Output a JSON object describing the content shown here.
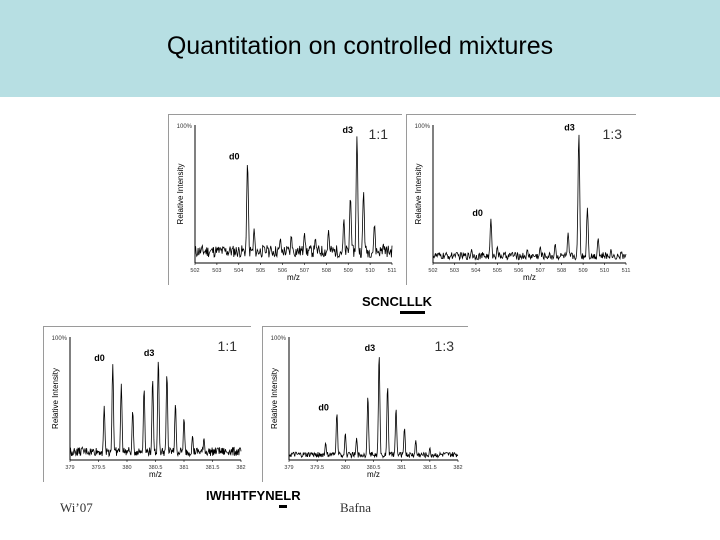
{
  "title": "Quantitation on controlled mixtures",
  "footer": {
    "left": "Wi’07",
    "right": "Bafna"
  },
  "sequences": {
    "seq1": "SCNCLLLK",
    "seq2": "IWHHTFYNELR"
  },
  "chart_data": [
    {
      "type": "line",
      "ratio": "1:1",
      "ylabel": "Relative Intensity",
      "xlabel": "m/z",
      "ytop": "100%",
      "xticks": [
        "502",
        "503",
        "504",
        "505",
        "506",
        "507",
        "508",
        "509",
        "510",
        "511"
      ],
      "xlim": [
        502,
        511
      ],
      "ylim": [
        0,
        100
      ],
      "peaks": [
        {
          "label": "d0",
          "x": 504.4,
          "y": 73
        },
        {
          "label": "d3",
          "x": 509.4,
          "y": 92
        }
      ],
      "baseline": 10,
      "noise_peaks": [
        [
          503,
          8
        ],
        [
          503.6,
          12
        ],
        [
          504.7,
          25
        ],
        [
          505.3,
          12
        ],
        [
          505.9,
          18
        ],
        [
          506.4,
          20
        ],
        [
          507,
          22
        ],
        [
          507.5,
          18
        ],
        [
          508.1,
          24
        ],
        [
          508.8,
          32
        ],
        [
          509.1,
          48
        ],
        [
          509.7,
          52
        ],
        [
          510.2,
          28
        ],
        [
          510.6,
          14
        ]
      ]
    },
    {
      "type": "line",
      "ratio": "1:3",
      "ylabel": "Relative Intensity",
      "xlabel": "m/z",
      "ytop": "100%",
      "xticks": [
        "502",
        "503",
        "504",
        "505",
        "506",
        "507",
        "508",
        "509",
        "510",
        "511"
      ],
      "xlim": [
        502,
        511
      ],
      "ylim": [
        0,
        100
      ],
      "peaks": [
        {
          "label": "d0",
          "x": 504.7,
          "y": 32
        },
        {
          "label": "d3",
          "x": 508.8,
          "y": 94
        }
      ],
      "baseline": 6,
      "noise_peaks": [
        [
          503,
          6
        ],
        [
          503.8,
          10
        ],
        [
          505,
          12
        ],
        [
          505.7,
          8
        ],
        [
          506.4,
          10
        ],
        [
          507,
          12
        ],
        [
          507.7,
          14
        ],
        [
          508.3,
          22
        ],
        [
          509.2,
          40
        ],
        [
          509.7,
          18
        ],
        [
          510.3,
          10
        ],
        [
          510.8,
          8
        ]
      ]
    },
    {
      "type": "line",
      "ratio": "1:1",
      "ylabel": "Relative Intensity",
      "xlabel": "m/z",
      "ytop": "100%",
      "xticks": [
        "379",
        "379.5",
        "380",
        "380.5",
        "381",
        "381.5",
        "382"
      ],
      "xlim": [
        379,
        382
      ],
      "ylim": [
        0,
        100
      ],
      "peaks": [
        {
          "label": "d0",
          "x": 379.75,
          "y": 78
        },
        {
          "label": "d3",
          "x": 380.55,
          "y": 82
        }
      ],
      "baseline": 8,
      "noise_peaks": [
        [
          379.3,
          6
        ],
        [
          379.6,
          44
        ],
        [
          379.9,
          62
        ],
        [
          380.1,
          40
        ],
        [
          380.3,
          58
        ],
        [
          380.45,
          66
        ],
        [
          380.7,
          70
        ],
        [
          380.85,
          46
        ],
        [
          381,
          34
        ],
        [
          381.15,
          20
        ],
        [
          381.35,
          18
        ],
        [
          381.6,
          10
        ],
        [
          381.8,
          8
        ]
      ]
    },
    {
      "type": "line",
      "ratio": "1:3",
      "ylabel": "Relative Intensity",
      "xlabel": "m/z",
      "ytop": "100%",
      "xticks": [
        "379",
        "379.5",
        "380",
        "380.5",
        "381",
        "381.5",
        "382"
      ],
      "xlim": [
        379,
        382
      ],
      "ylim": [
        0,
        100
      ],
      "peaks": [
        {
          "label": "d0",
          "x": 379.85,
          "y": 38
        },
        {
          "label": "d3",
          "x": 380.6,
          "y": 86
        }
      ],
      "baseline": 5,
      "noise_peaks": [
        [
          379.4,
          6
        ],
        [
          379.65,
          14
        ],
        [
          380,
          22
        ],
        [
          380.2,
          18
        ],
        [
          380.4,
          52
        ],
        [
          380.75,
          60
        ],
        [
          380.9,
          42
        ],
        [
          381.05,
          26
        ],
        [
          381.25,
          16
        ],
        [
          381.5,
          10
        ],
        [
          381.75,
          6
        ]
      ]
    }
  ]
}
